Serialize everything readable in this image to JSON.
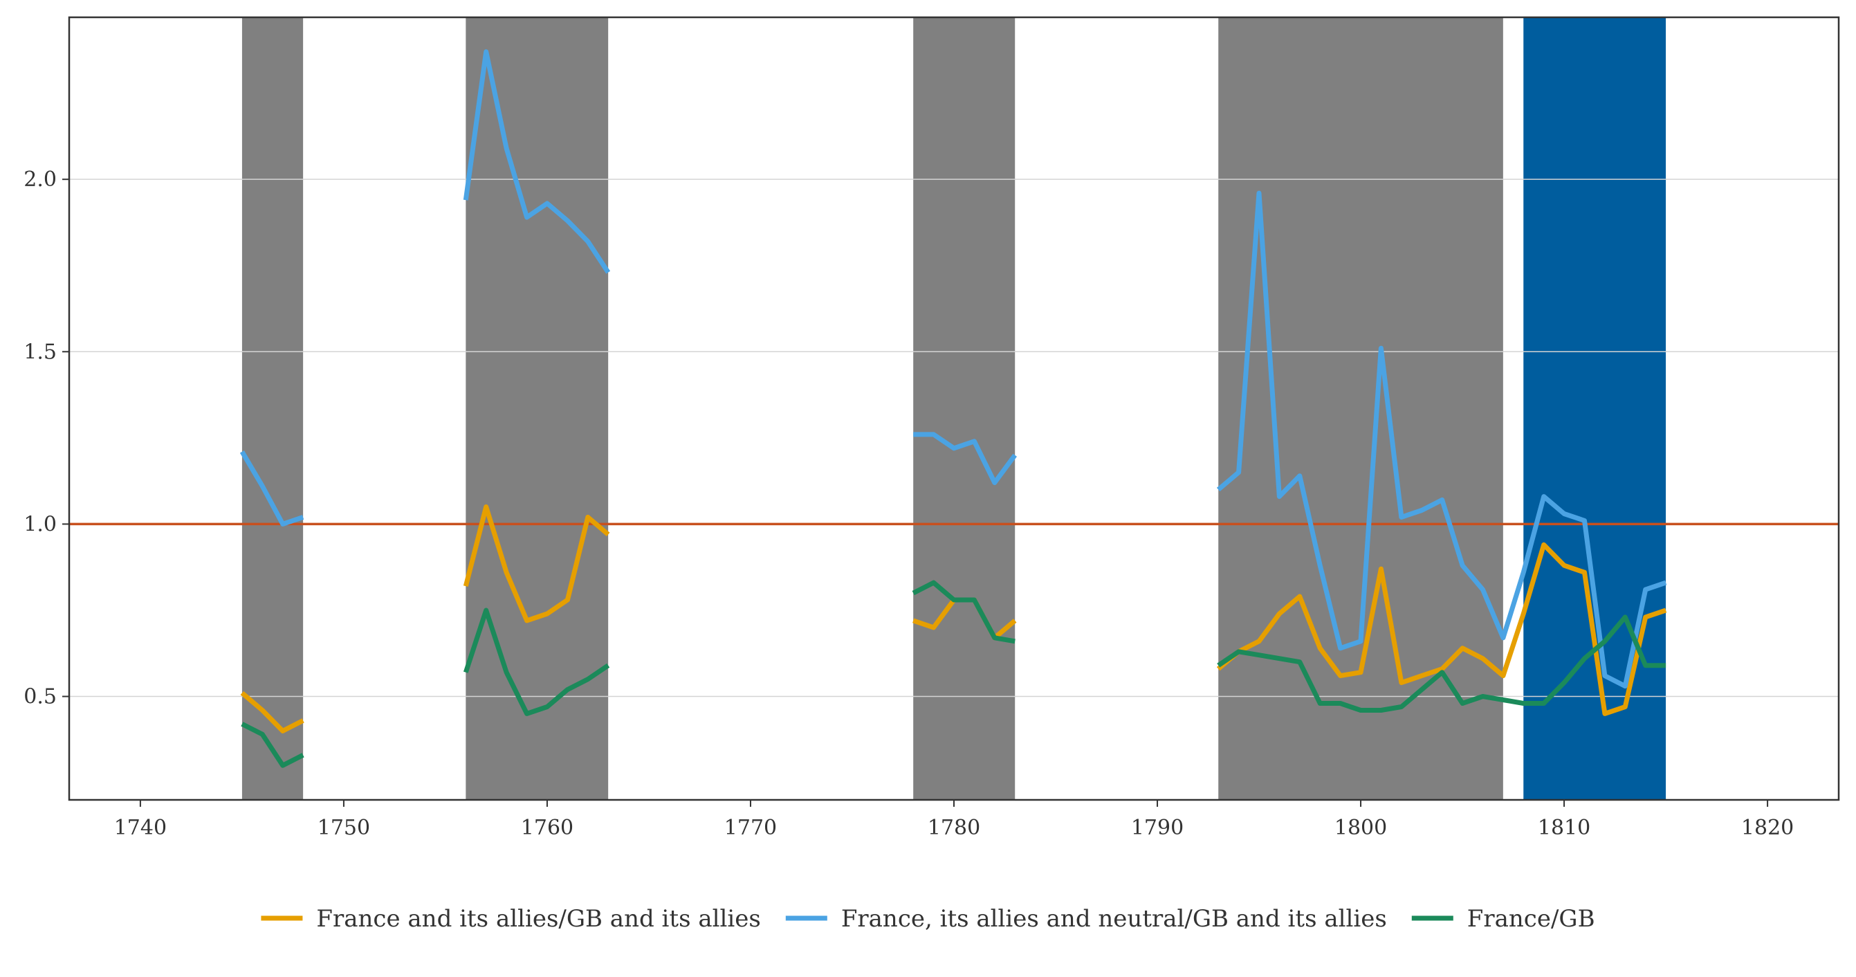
{
  "chart_data": {
    "type": "line",
    "title": "",
    "xlabel": "",
    "ylabel": "",
    "xlim": [
      1736.5,
      1823.5
    ],
    "ylim": [
      0.2,
      2.47
    ],
    "x_ticks": [
      1740,
      1750,
      1760,
      1770,
      1780,
      1790,
      1800,
      1810,
      1820
    ],
    "y_ticks": [
      0.5,
      1.0,
      1.5,
      2.0
    ],
    "y_tick_labels": [
      "0.5",
      "1.0",
      "1.5",
      "2.0"
    ],
    "grid": "horizontal",
    "legend_position": "bottom",
    "reference_line": {
      "y": 1.0,
      "color": "#c8501e"
    },
    "shaded_periods": [
      {
        "start": 1745,
        "end": 1748,
        "color": "#808080"
      },
      {
        "start": 1756,
        "end": 1763,
        "color": "#808080"
      },
      {
        "start": 1778,
        "end": 1783,
        "color": "#808080"
      },
      {
        "start": 1793,
        "end": 1807,
        "color": "#808080"
      },
      {
        "start": 1808,
        "end": 1815,
        "color": "#005d9e"
      }
    ],
    "series": [
      {
        "name": "France and its allies/GB and its allies",
        "color": "#e69f00",
        "segments": [
          {
            "x": [
              1745,
              1746,
              1747,
              1748
            ],
            "y": [
              0.51,
              0.46,
              0.4,
              0.43
            ]
          },
          {
            "x": [
              1756,
              1757,
              1758,
              1759,
              1760,
              1761,
              1762,
              1763
            ],
            "y": [
              0.82,
              1.05,
              0.86,
              0.72,
              0.74,
              0.78,
              1.02,
              0.97
            ]
          },
          {
            "x": [
              1778,
              1779,
              1780,
              1781,
              1782,
              1783
            ],
            "y": [
              0.72,
              0.7,
              0.78,
              0.78,
              0.67,
              0.72
            ]
          },
          {
            "x": [
              1793,
              1794,
              1795,
              1796,
              1797,
              1798,
              1799,
              1800,
              1801,
              1802,
              1803,
              1804,
              1805,
              1806,
              1807,
              1808,
              1809,
              1810,
              1811,
              1812,
              1813,
              1814,
              1815
            ],
            "y": [
              0.58,
              0.63,
              0.66,
              0.74,
              0.79,
              0.64,
              0.56,
              0.57,
              0.87,
              0.54,
              0.56,
              0.58,
              0.64,
              0.61,
              0.56,
              0.74,
              0.94,
              0.88,
              0.86,
              0.45,
              0.47,
              0.73,
              0.75
            ]
          }
        ]
      },
      {
        "name": "France, its allies and neutral/GB and its allies",
        "color": "#4ba3e3",
        "segments": [
          {
            "x": [
              1745,
              1746,
              1747,
              1748
            ],
            "y": [
              1.21,
              1.11,
              1.0,
              1.02
            ]
          },
          {
            "x": [
              1756,
              1757,
              1758,
              1759,
              1760,
              1761,
              1762,
              1763
            ],
            "y": [
              1.94,
              2.37,
              2.09,
              1.89,
              1.93,
              1.88,
              1.82,
              1.73
            ]
          },
          {
            "x": [
              1778,
              1779,
              1780,
              1781,
              1782,
              1783
            ],
            "y": [
              1.26,
              1.26,
              1.22,
              1.24,
              1.12,
              1.2
            ]
          },
          {
            "x": [
              1793,
              1794,
              1795,
              1796,
              1797,
              1798,
              1799,
              1800,
              1801,
              1802,
              1803,
              1804,
              1805,
              1806,
              1807,
              1808,
              1809,
              1810,
              1811,
              1812,
              1813,
              1814,
              1815
            ],
            "y": [
              1.1,
              1.15,
              1.96,
              1.08,
              1.14,
              0.88,
              0.64,
              0.66,
              1.51,
              1.02,
              1.04,
              1.07,
              0.88,
              0.81,
              0.67,
              0.86,
              1.08,
              1.03,
              1.01,
              0.56,
              0.53,
              0.81,
              0.83
            ]
          }
        ]
      },
      {
        "name": "France/GB",
        "color": "#1b8a5a",
        "segments": [
          {
            "x": [
              1745,
              1746,
              1747,
              1748
            ],
            "y": [
              0.42,
              0.39,
              0.3,
              0.33
            ]
          },
          {
            "x": [
              1756,
              1757,
              1758,
              1759,
              1760,
              1761,
              1762,
              1763
            ],
            "y": [
              0.57,
              0.75,
              0.57,
              0.45,
              0.47,
              0.52,
              0.55,
              0.59
            ]
          },
          {
            "x": [
              1778,
              1779,
              1780,
              1781,
              1782,
              1783
            ],
            "y": [
              0.8,
              0.83,
              0.78,
              0.78,
              0.67,
              0.66
            ]
          },
          {
            "x": [
              1793,
              1794,
              1795,
              1796,
              1797,
              1798,
              1799,
              1800,
              1801,
              1802,
              1803,
              1804,
              1805,
              1806,
              1807,
              1808,
              1809,
              1810,
              1811,
              1812,
              1813,
              1814,
              1815
            ],
            "y": [
              0.59,
              0.63,
              0.62,
              0.61,
              0.6,
              0.48,
              0.48,
              0.46,
              0.46,
              0.47,
              0.52,
              0.57,
              0.48,
              0.5,
              0.49,
              0.48,
              0.48,
              0.54,
              0.61,
              0.66,
              0.73,
              0.59,
              0.59
            ]
          }
        ]
      }
    ]
  }
}
